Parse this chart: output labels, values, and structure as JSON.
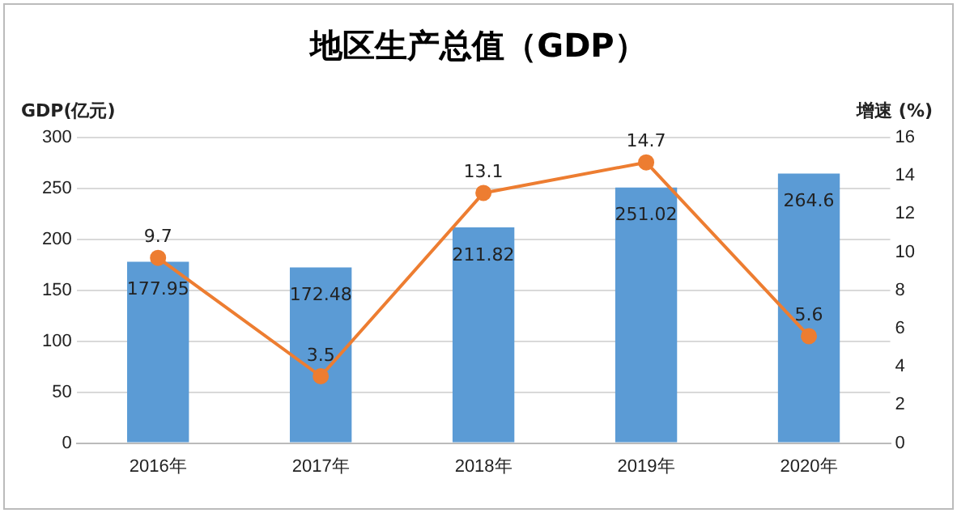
{
  "chart_data": {
    "type": "bar",
    "title": "地区生产总值（GDP）",
    "ylabel": "GDP(亿元)",
    "y2label": "增速 (%)",
    "categories": [
      "2016年",
      "2017年",
      "2018年",
      "2019年",
      "2020年"
    ],
    "series": [
      {
        "color": "#5b9bd5",
        "values": [
          177.95,
          172.48,
          211.82,
          251.02,
          264.6
        ]
      },
      {
        "type": "line",
        "axis": "y2",
        "color": "#ed7d31",
        "values": [
          9.7,
          3.5,
          13.1,
          14.7,
          5.6
        ]
      }
    ],
    "ylim": [
      0,
      300
    ],
    "yticks": [
      0,
      50,
      100,
      150,
      200,
      250,
      300
    ],
    "y2lim": [
      0,
      16
    ],
    "y2ticks": [
      0,
      2,
      4,
      6,
      8,
      10,
      12,
      14,
      16
    ],
    "grid": "y",
    "legend": false,
    "marker": "circle",
    "line_style": "solid",
    "data_labels": true
  }
}
